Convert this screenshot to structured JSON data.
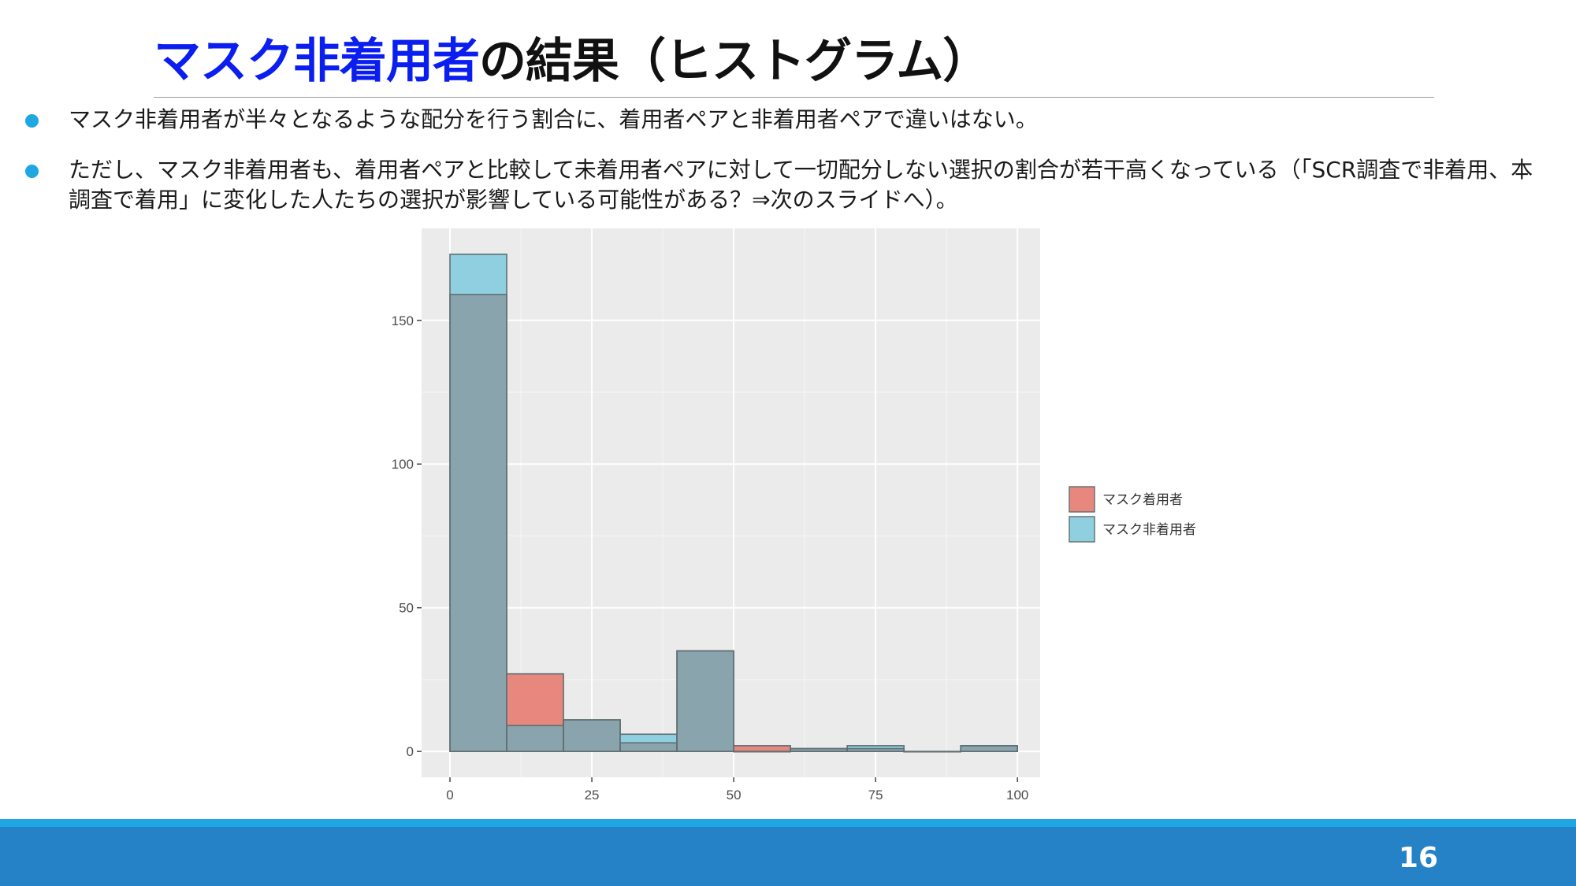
{
  "slide": {
    "title_accent": "マスク非着用者",
    "title_rest": "の結果（ヒストグラム）",
    "bullets": [
      "マスク非着用者が半々となるような配分を行う割合に、着用者ペアと非着用者ペアで違いはない。",
      "ただし、マスク非着用者も、着用者ペアと比較して未着用者ペアに対して一切配分しない選択の割合が若干高くなっている（「SCR調査で非着用、本調査で着用」に変化した人たちの選択が影響している可能性がある？⇒次のスライドへ）。"
    ],
    "page_number": "16"
  },
  "colors": {
    "accent_title": "#0a1ef0",
    "bullet_dot": "#1ea7e1",
    "footer_stripe": "#1ea7e1",
    "footer_bar": "#2582c7",
    "panel_bg": "#ebebeb",
    "series_wearing": "#e8877d",
    "series_nonwearing": "#8fcfe0",
    "overlap": "#8aa4ad",
    "bar_outline": "#5f6f73"
  },
  "chart_data": {
    "type": "bar",
    "subtype": "histogram-overlaid",
    "bin_width": 10,
    "bin_starts": [
      0,
      10,
      20,
      30,
      40,
      50,
      60,
      70,
      80,
      90
    ],
    "series": [
      {
        "name": "マスク着用者",
        "values": [
          159,
          27,
          11,
          3,
          35,
          2,
          1,
          1,
          0,
          2
        ]
      },
      {
        "name": "マスク非着用者",
        "values": [
          173,
          9,
          11,
          6,
          35,
          0,
          1,
          2,
          0,
          2
        ]
      }
    ],
    "x_ticks": [
      0,
      25,
      50,
      75,
      100
    ],
    "y_ticks": [
      0,
      50,
      100,
      150
    ],
    "xlim": [
      -5,
      104
    ],
    "ylim": [
      -9,
      182
    ],
    "title": "",
    "xlabel": "",
    "ylabel": "",
    "grid": true,
    "legend_position": "right"
  }
}
